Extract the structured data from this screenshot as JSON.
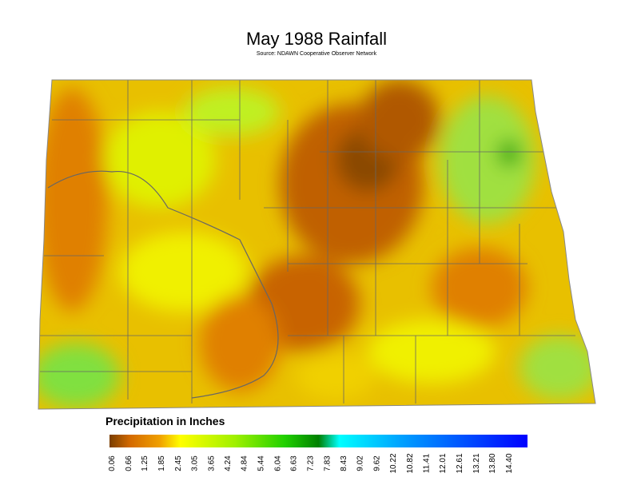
{
  "title": "May 1988 Rainfall",
  "subtitle": "Source: NDAWN Cooperative Observer Network",
  "legend": {
    "title": "Precipitation in Inches",
    "ticks": [
      0.06,
      0.66,
      1.25,
      1.85,
      2.45,
      3.05,
      3.65,
      4.24,
      4.84,
      5.44,
      6.04,
      6.63,
      7.23,
      7.83,
      8.43,
      9.02,
      9.62,
      10.22,
      10.82,
      11.41,
      12.01,
      12.61,
      13.21,
      {
        "value": 13.8,
        "label": "13.80"
      },
      {
        "value": 14.4,
        "label": "14.40"
      }
    ]
  }
}
